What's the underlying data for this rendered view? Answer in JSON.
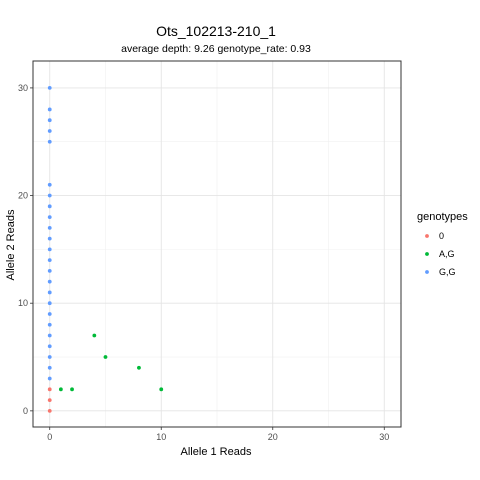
{
  "chart_data": {
    "type": "scatter",
    "title": "Ots_102213-210_1",
    "subtitle": "average depth:  9.26  genotype_rate:  0.93",
    "xlabel": "Allele 1 Reads",
    "ylabel": "Allele 2 Reads",
    "xlim": [
      -1.5,
      31.5
    ],
    "ylim": [
      -1.5,
      32.5
    ],
    "xticks": [
      0,
      10,
      20,
      30
    ],
    "yticks": [
      0,
      10,
      20,
      30
    ],
    "grid": true,
    "legend": {
      "title": "genotypes",
      "position": "right"
    },
    "series": [
      {
        "name": "0",
        "color": "#F8766D",
        "points": [
          [
            0,
            0
          ],
          [
            0,
            1
          ],
          [
            0,
            2
          ]
        ]
      },
      {
        "name": "A,G",
        "color": "#00BA38",
        "points": [
          [
            1,
            2
          ],
          [
            2,
            2
          ],
          [
            4,
            7
          ],
          [
            5,
            5
          ],
          [
            8,
            4
          ],
          [
            10,
            2
          ]
        ]
      },
      {
        "name": "G,G",
        "color": "#619CFF",
        "points": [
          [
            0,
            3
          ],
          [
            0,
            4
          ],
          [
            0,
            5
          ],
          [
            0,
            6
          ],
          [
            0,
            7
          ],
          [
            0,
            8
          ],
          [
            0,
            9
          ],
          [
            0,
            10
          ],
          [
            0,
            11
          ],
          [
            0,
            12
          ],
          [
            0,
            13
          ],
          [
            0,
            14
          ],
          [
            0,
            15
          ],
          [
            0,
            16
          ],
          [
            0,
            17
          ],
          [
            0,
            18
          ],
          [
            0,
            19
          ],
          [
            0,
            20
          ],
          [
            0,
            21
          ],
          [
            0,
            25
          ],
          [
            0,
            26
          ],
          [
            0,
            27
          ],
          [
            0,
            28
          ],
          [
            0,
            30
          ]
        ]
      }
    ]
  }
}
